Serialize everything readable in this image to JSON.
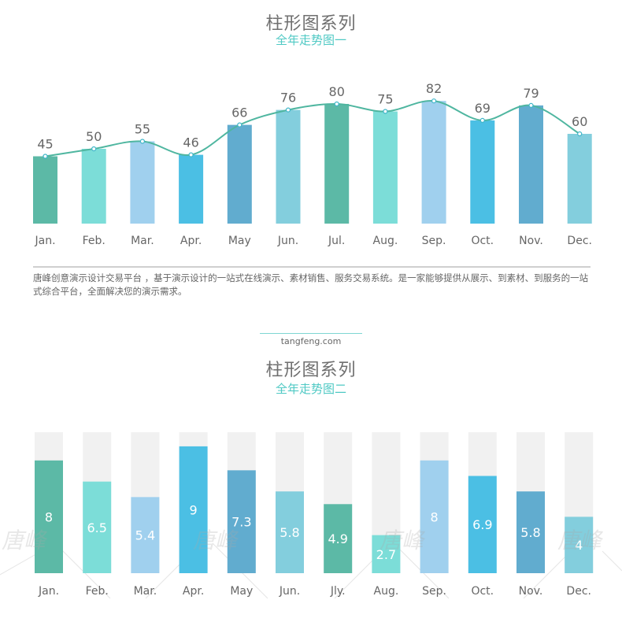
{
  "palette": [
    "#5cb9a6",
    "#7cddd8",
    "#a0d0ee",
    "#4bbfe4",
    "#61accf",
    "#83cedd"
  ],
  "line_color": "#4fb6a0",
  "track_color": "#f1f1f1",
  "watermark": "唐峰",
  "description": "唐峰创意演示设计交易平台 ，基于演示设计的一站式在线演示、素材销售、服务交易系统。是一家能够提供从展示、到素材、到服务的一站式综合平台，全面解决您的演示需求。",
  "site": "tangfeng.com",
  "chart_data": [
    {
      "type": "bar",
      "title": "柱形图系列",
      "subtitle": "全年走势图一",
      "categories": [
        "Jan.",
        "Feb.",
        "Mar.",
        "Apr.",
        "May",
        "Jun.",
        "Jul.",
        "Aug.",
        "Sep.",
        "Oct.",
        "Nov.",
        "Dec."
      ],
      "values": [
        45,
        50,
        55,
        46,
        66,
        76,
        80,
        75,
        82,
        69,
        79,
        60
      ],
      "overlay_line": true,
      "data_labels": true,
      "ylim": [
        0,
        100
      ],
      "grid": false,
      "xlabel": "",
      "ylabel": ""
    },
    {
      "type": "bar",
      "title": "柱形图系列",
      "subtitle": "全年走势图二",
      "categories": [
        "Jan.",
        "Feb.",
        "Mar.",
        "Apr.",
        "May",
        "Jun.",
        "Jly.",
        "Aug.",
        "Sep.",
        "Oct.",
        "Nov.",
        "Dec."
      ],
      "values": [
        8,
        6.5,
        5.4,
        9,
        7.3,
        5.8,
        4.9,
        2.7,
        8,
        6.9,
        5.8,
        4
      ],
      "ylim": [
        0,
        10
      ],
      "background_track": true,
      "data_labels": true,
      "grid": false,
      "xlabel": "",
      "ylabel": ""
    }
  ]
}
